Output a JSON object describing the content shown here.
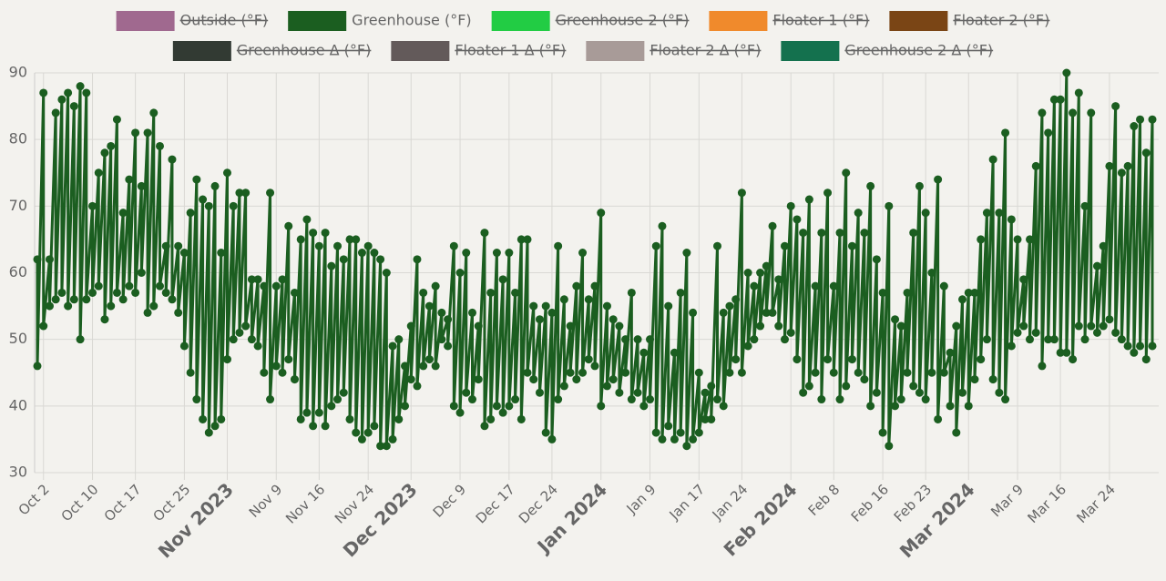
{
  "chart_data": {
    "type": "line",
    "legend_position": "top",
    "grid": true,
    "ylim": [
      30,
      90
    ],
    "yticks": [
      30,
      40,
      50,
      60,
      70,
      80,
      90
    ],
    "xlim": [
      "2023-10-01",
      "2024-03-31"
    ],
    "xticks": [
      {
        "value": "2023-10-02",
        "label": "Oct 2"
      },
      {
        "value": "2023-10-10",
        "label": "Oct 10"
      },
      {
        "value": "2023-10-17",
        "label": "Oct 17"
      },
      {
        "value": "2023-10-25",
        "label": "Oct 25"
      },
      {
        "value": "2023-11-01",
        "label": "Nov 2023"
      },
      {
        "value": "2023-11-09",
        "label": "Nov 9"
      },
      {
        "value": "2023-11-16",
        "label": "Nov 16"
      },
      {
        "value": "2023-11-24",
        "label": "Nov 24"
      },
      {
        "value": "2023-12-01",
        "label": "Dec 2023"
      },
      {
        "value": "2023-12-09",
        "label": "Dec 9"
      },
      {
        "value": "2023-12-17",
        "label": "Dec 17"
      },
      {
        "value": "2023-12-24",
        "label": "Dec 24"
      },
      {
        "value": "2024-01-01",
        "label": "Jan 2024"
      },
      {
        "value": "2024-01-09",
        "label": "Jan 9"
      },
      {
        "value": "2024-01-17",
        "label": "Jan 17"
      },
      {
        "value": "2024-01-24",
        "label": "Jan 24"
      },
      {
        "value": "2024-02-01",
        "label": "Feb 2024"
      },
      {
        "value": "2024-02-08",
        "label": "Feb 8"
      },
      {
        "value": "2024-02-16",
        "label": "Feb 16"
      },
      {
        "value": "2024-02-23",
        "label": "Feb 23"
      },
      {
        "value": "2024-03-01",
        "label": "Mar 2024"
      },
      {
        "value": "2024-03-09",
        "label": "Mar 9"
      },
      {
        "value": "2024-03-16",
        "label": "Mar 16"
      },
      {
        "value": "2024-03-24",
        "label": "Mar 24"
      }
    ],
    "x": [
      "2023-10-01",
      "2023-10-01",
      "2023-10-02",
      "2023-10-02",
      "2023-10-03",
      "2023-10-03",
      "2023-10-04",
      "2023-10-04",
      "2023-10-05",
      "2023-10-05",
      "2023-10-06",
      "2023-10-06",
      "2023-10-07",
      "2023-10-07",
      "2023-10-08",
      "2023-10-08",
      "2023-10-09",
      "2023-10-09",
      "2023-10-10",
      "2023-10-10",
      "2023-10-11",
      "2023-10-11",
      "2023-10-12",
      "2023-10-12",
      "2023-10-13",
      "2023-10-13",
      "2023-10-14",
      "2023-10-14",
      "2023-10-15",
      "2023-10-15",
      "2023-10-16",
      "2023-10-16",
      "2023-10-17",
      "2023-10-17",
      "2023-10-18",
      "2023-10-18",
      "2023-10-19",
      "2023-10-19",
      "2023-10-20",
      "2023-10-20",
      "2023-10-21",
      "2023-10-21",
      "2023-10-22",
      "2023-10-22",
      "2023-10-23",
      "2023-10-23",
      "2023-10-24",
      "2023-10-24",
      "2023-10-25",
      "2023-10-25",
      "2023-10-26",
      "2023-10-26",
      "2023-10-27",
      "2023-10-27",
      "2023-10-28",
      "2023-10-28",
      "2023-10-29",
      "2023-10-29",
      "2023-10-30",
      "2023-10-30",
      "2023-10-31",
      "2023-10-31",
      "2023-11-01",
      "2023-11-01",
      "2023-11-02",
      "2023-11-02",
      "2023-11-03",
      "2023-11-03",
      "2023-11-04",
      "2023-11-04",
      "2023-11-05",
      "2023-11-05",
      "2023-11-06",
      "2023-11-06",
      "2023-11-07",
      "2023-11-07",
      "2023-11-08",
      "2023-11-08",
      "2023-11-09",
      "2023-11-09",
      "2023-11-10",
      "2023-11-10",
      "2023-11-11",
      "2023-11-11",
      "2023-11-12",
      "2023-11-12",
      "2023-11-13",
      "2023-11-13",
      "2023-11-14",
      "2023-11-14",
      "2023-11-15",
      "2023-11-15",
      "2023-11-16",
      "2023-11-16",
      "2023-11-17",
      "2023-11-17",
      "2023-11-18",
      "2023-11-18",
      "2023-11-19",
      "2023-11-19",
      "2023-11-20",
      "2023-11-20",
      "2023-11-21",
      "2023-11-21",
      "2023-11-22",
      "2023-11-22",
      "2023-11-23",
      "2023-11-23",
      "2023-11-24",
      "2023-11-24",
      "2023-11-25",
      "2023-11-25",
      "2023-11-26",
      "2023-11-26",
      "2023-11-27",
      "2023-11-27",
      "2023-11-28",
      "2023-11-28",
      "2023-11-29",
      "2023-11-29",
      "2023-11-30",
      "2023-11-30",
      "2023-12-01",
      "2023-12-01",
      "2023-12-02",
      "2023-12-02",
      "2023-12-03",
      "2023-12-03",
      "2023-12-04",
      "2023-12-04",
      "2023-12-05",
      "2023-12-05",
      "2023-12-06",
      "2023-12-06",
      "2023-12-07",
      "2023-12-07",
      "2023-12-08",
      "2023-12-08",
      "2023-12-09",
      "2023-12-09",
      "2023-12-10",
      "2023-12-10",
      "2023-12-11",
      "2023-12-11",
      "2023-12-12",
      "2023-12-12",
      "2023-12-13",
      "2023-12-13",
      "2023-12-14",
      "2023-12-14",
      "2023-12-15",
      "2023-12-15",
      "2023-12-16",
      "2023-12-16",
      "2023-12-17",
      "2023-12-17",
      "2023-12-18",
      "2023-12-18",
      "2023-12-19",
      "2023-12-19",
      "2023-12-20",
      "2023-12-20",
      "2023-12-21",
      "2023-12-21",
      "2023-12-22",
      "2023-12-22",
      "2023-12-23",
      "2023-12-23",
      "2023-12-24",
      "2023-12-24",
      "2023-12-25",
      "2023-12-25",
      "2023-12-26",
      "2023-12-26",
      "2023-12-27",
      "2023-12-27",
      "2023-12-28",
      "2023-12-28",
      "2023-12-29",
      "2023-12-29",
      "2023-12-30",
      "2023-12-30",
      "2023-12-31",
      "2023-12-31",
      "2024-01-01",
      "2024-01-01",
      "2024-01-02",
      "2024-01-02",
      "2024-01-03",
      "2024-01-03",
      "2024-01-04",
      "2024-01-04",
      "2024-01-05",
      "2024-01-05",
      "2024-01-06",
      "2024-01-06",
      "2024-01-07",
      "2024-01-07",
      "2024-01-08",
      "2024-01-08",
      "2024-01-09",
      "2024-01-09",
      "2024-01-10",
      "2024-01-10",
      "2024-01-11",
      "2024-01-11",
      "2024-01-12",
      "2024-01-12",
      "2024-01-13",
      "2024-01-13",
      "2024-01-14",
      "2024-01-14",
      "2024-01-15",
      "2024-01-15",
      "2024-01-16",
      "2024-01-16",
      "2024-01-17",
      "2024-01-17",
      "2024-01-18",
      "2024-01-18",
      "2024-01-19",
      "2024-01-19",
      "2024-01-20",
      "2024-01-20",
      "2024-01-21",
      "2024-01-21",
      "2024-01-22",
      "2024-01-22",
      "2024-01-23",
      "2024-01-23",
      "2024-01-24",
      "2024-01-24",
      "2024-01-25",
      "2024-01-25",
      "2024-01-26",
      "2024-01-26",
      "2024-01-27",
      "2024-01-27",
      "2024-01-28",
      "2024-01-28",
      "2024-01-29",
      "2024-01-29",
      "2024-01-30",
      "2024-01-30",
      "2024-01-31",
      "2024-01-31",
      "2024-02-01",
      "2024-02-01",
      "2024-02-02",
      "2024-02-02",
      "2024-02-03",
      "2024-02-03",
      "2024-02-04",
      "2024-02-04",
      "2024-02-05",
      "2024-02-05",
      "2024-02-06",
      "2024-02-06",
      "2024-02-07",
      "2024-02-07",
      "2024-02-08",
      "2024-02-08",
      "2024-02-09",
      "2024-02-09",
      "2024-02-10",
      "2024-02-10",
      "2024-02-11",
      "2024-02-11",
      "2024-02-12",
      "2024-02-12",
      "2024-02-13",
      "2024-02-13",
      "2024-02-14",
      "2024-02-14",
      "2024-02-15",
      "2024-02-15",
      "2024-02-16",
      "2024-02-16",
      "2024-02-17",
      "2024-02-17",
      "2024-02-18",
      "2024-02-18",
      "2024-02-19",
      "2024-02-19",
      "2024-02-20",
      "2024-02-20",
      "2024-02-21",
      "2024-02-21",
      "2024-02-22",
      "2024-02-22",
      "2024-02-23",
      "2024-02-23",
      "2024-02-24",
      "2024-02-24",
      "2024-02-25",
      "2024-02-25",
      "2024-02-26",
      "2024-02-26",
      "2024-02-27",
      "2024-02-27",
      "2024-02-28",
      "2024-02-28",
      "2024-02-29",
      "2024-02-29",
      "2024-03-01",
      "2024-03-01",
      "2024-03-02",
      "2024-03-02",
      "2024-03-03",
      "2024-03-03",
      "2024-03-04",
      "2024-03-04",
      "2024-03-05",
      "2024-03-05",
      "2024-03-06",
      "2024-03-06",
      "2024-03-07",
      "2024-03-07",
      "2024-03-08",
      "2024-03-08",
      "2024-03-09",
      "2024-03-09",
      "2024-03-10",
      "2024-03-10",
      "2024-03-11",
      "2024-03-11",
      "2024-03-12",
      "2024-03-12",
      "2024-03-13",
      "2024-03-13",
      "2024-03-14",
      "2024-03-14",
      "2024-03-15",
      "2024-03-15",
      "2024-03-16",
      "2024-03-16",
      "2024-03-17",
      "2024-03-17",
      "2024-03-18",
      "2024-03-18",
      "2024-03-19",
      "2024-03-19",
      "2024-03-20",
      "2024-03-20",
      "2024-03-21",
      "2024-03-21",
      "2024-03-22",
      "2024-03-22",
      "2024-03-23",
      "2024-03-23",
      "2024-03-24",
      "2024-03-24",
      "2024-03-25",
      "2024-03-25",
      "2024-03-26",
      "2024-03-26",
      "2024-03-27",
      "2024-03-27",
      "2024-03-28",
      "2024-03-28",
      "2024-03-29",
      "2024-03-29",
      "2024-03-30",
      "2024-03-30",
      "2024-03-31",
      "2024-03-31"
    ],
    "series": [
      {
        "name": "Outside (°F)",
        "color": "#a0698f",
        "hidden": true
      },
      {
        "name": "Greenhouse (°F)",
        "color": "#1b5e20",
        "hidden": false,
        "values": [
          62,
          46,
          87,
          52,
          62,
          55,
          84,
          56,
          86,
          57,
          87,
          55,
          85,
          56,
          88,
          50,
          87,
          56,
          70,
          57,
          75,
          58,
          78,
          53,
          79,
          55,
          83,
          57,
          69,
          56,
          74,
          58,
          81,
          57,
          73,
          60,
          81,
          54,
          84,
          55,
          79,
          58,
          64,
          57,
          77,
          56,
          64,
          54,
          63,
          49,
          69,
          45,
          74,
          41,
          71,
          38,
          70,
          36,
          73,
          37,
          63,
          38,
          75,
          47,
          70,
          50,
          72,
          51,
          72,
          52,
          59,
          50,
          59,
          49,
          58,
          45,
          72,
          41,
          58,
          46,
          59,
          45,
          67,
          47,
          57,
          44,
          65,
          38,
          68,
          39,
          66,
          37,
          64,
          39,
          66,
          37,
          61,
          40,
          64,
          41,
          62,
          42,
          65,
          38,
          65,
          36,
          63,
          35,
          64,
          36,
          63,
          37,
          62,
          34,
          60,
          34,
          49,
          35,
          50,
          38,
          46,
          40,
          52,
          44,
          62,
          43,
          57,
          46,
          55,
          47,
          58,
          46,
          54,
          50,
          53,
          49,
          64,
          40,
          60,
          39,
          63,
          42,
          54,
          41,
          52,
          44,
          66,
          37,
          57,
          38,
          63,
          40,
          59,
          39,
          63,
          40,
          57,
          41,
          65,
          38,
          65,
          45,
          55,
          44,
          53,
          42,
          55,
          36,
          54,
          35,
          64,
          41,
          56,
          43,
          52,
          45,
          58,
          44,
          63,
          45,
          56,
          47,
          58,
          46,
          69,
          40,
          55,
          43,
          53,
          44,
          52,
          42,
          50,
          45,
          57,
          41,
          50,
          42,
          48,
          40,
          50,
          41,
          64,
          36,
          67,
          35,
          55,
          37,
          48,
          35,
          57,
          36,
          63,
          34,
          54,
          35,
          45,
          36,
          42,
          38,
          43,
          38,
          64,
          41,
          54,
          40,
          55,
          45,
          56,
          47,
          72,
          45,
          60,
          49,
          58,
          50,
          60,
          52,
          61,
          54,
          67,
          54,
          59,
          52,
          64,
          50,
          70,
          51,
          68,
          47,
          66,
          42,
          71,
          43,
          58,
          45,
          66,
          41,
          72,
          47,
          58,
          45,
          66,
          41,
          75,
          43,
          64,
          47,
          69,
          45,
          66,
          44,
          73,
          40,
          62,
          42,
          57,
          36,
          70,
          34,
          53,
          40,
          52,
          41,
          57,
          45,
          66,
          43,
          73,
          42,
          69,
          41,
          60,
          45,
          74,
          38,
          58,
          45,
          48,
          40,
          52,
          36,
          56,
          42,
          57,
          40,
          57,
          44,
          65,
          47,
          69,
          50,
          77,
          44,
          69,
          42,
          81,
          41,
          68,
          49,
          65,
          51,
          59,
          52,
          65,
          50,
          76,
          51,
          84,
          46,
          81,
          50,
          86,
          50,
          86,
          48,
          90,
          48,
          84,
          47,
          87,
          52,
          70,
          50,
          84,
          52,
          61,
          51,
          64,
          52,
          76,
          53,
          85,
          51,
          75,
          50,
          76,
          49,
          82,
          48,
          83,
          49,
          78,
          47,
          83,
          49
        ]
      },
      {
        "name": "Greenhouse 2 (°F)",
        "color": "#22cc44",
        "hidden": true
      },
      {
        "name": "Floater 1 (°F)",
        "color": "#f08a2c",
        "hidden": true
      },
      {
        "name": "Floater 2 (°F)",
        "color": "#7a4515",
        "hidden": true
      },
      {
        "name": "Greenhouse Δ (°F)",
        "color": "#323a33",
        "hidden": true
      },
      {
        "name": "Floater 1 Δ (°F)",
        "color": "#635a5a",
        "hidden": true
      },
      {
        "name": "Floater 2 Δ (°F)",
        "color": "#a89b98",
        "hidden": true
      },
      {
        "name": "Greenhouse 2 Δ (°F)",
        "color": "#14714e",
        "hidden": true
      }
    ]
  }
}
